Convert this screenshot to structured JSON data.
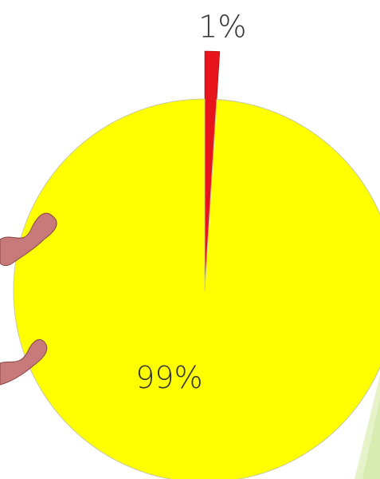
{
  "chart_data": {
    "type": "pie",
    "values": [
      1,
      99
    ],
    "value_labels": [
      "1%",
      "99%"
    ],
    "colors": [
      "#e8141b",
      "#ffff00"
    ]
  }
}
